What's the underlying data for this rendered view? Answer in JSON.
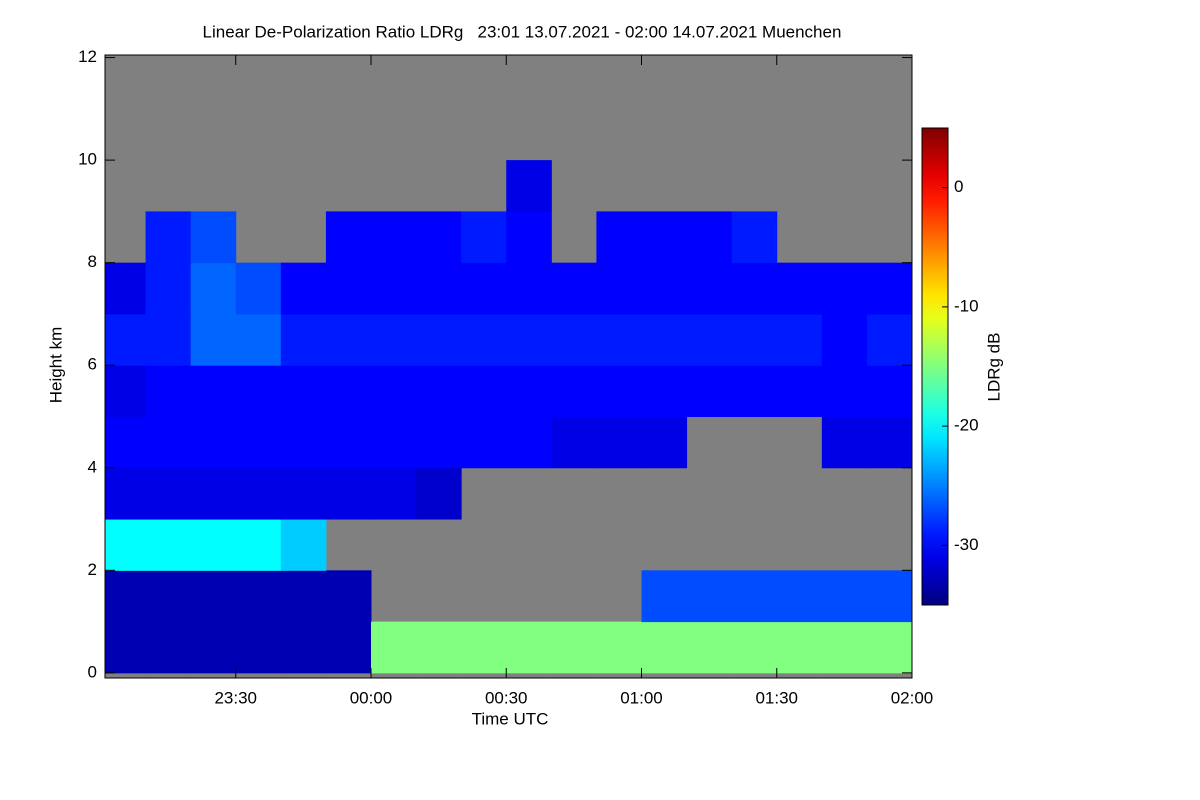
{
  "chart_data": {
    "type": "heatmap",
    "title": "Linear De-Polarization Ratio LDRg   23:01 13.07.2021 - 02:00 14.07.2021 Muenchen",
    "xlabel": "Time UTC",
    "ylabel": "Height km",
    "colorbar_label": "LDRg dB",
    "colormap": "jet",
    "nodata_color": "#808080",
    "xlim": [
      1,
      180
    ],
    "xticks": [
      {
        "value": 30,
        "label": "23:30"
      },
      {
        "value": 60,
        "label": "00:00"
      },
      {
        "value": 90,
        "label": "00:30"
      },
      {
        "value": 120,
        "label": "01:00"
      },
      {
        "value": 150,
        "label": "01:30"
      },
      {
        "value": 180,
        "label": "02:00"
      }
    ],
    "ylim": [
      -0.1,
      12.05
    ],
    "yticks": [
      0,
      2,
      4,
      6,
      8,
      10,
      12
    ],
    "clim": [
      -35,
      5
    ],
    "cticks": [
      0,
      -10,
      -20,
      -30
    ],
    "x_edges": [
      1,
      10,
      20,
      30,
      40,
      50,
      60,
      70,
      80,
      90,
      100,
      110,
      120,
      130,
      140,
      150,
      160,
      170,
      180
    ],
    "y_edges": [
      0,
      1,
      2,
      3,
      4,
      5,
      6,
      7,
      8,
      9,
      10,
      11,
      12
    ],
    "values": [
      [
        -33,
        -33,
        -33,
        -33,
        -33,
        -33,
        -15,
        -15,
        -15,
        -15,
        -15,
        -15,
        -15,
        -15,
        -15,
        -15,
        -15,
        -15
      ],
      [
        -33,
        -33,
        -33,
        -33,
        -33,
        -33,
        null,
        null,
        null,
        null,
        null,
        null,
        -27,
        -27,
        -27,
        -27,
        -27,
        -27
      ],
      [
        -20,
        -20,
        -20,
        -20,
        -22,
        null,
        null,
        null,
        null,
        null,
        null,
        null,
        null,
        null,
        null,
        null,
        null,
        null
      ],
      [
        -31,
        -31,
        -31,
        -31,
        -31,
        -31,
        -31,
        -32,
        null,
        null,
        null,
        null,
        null,
        null,
        null,
        null,
        null,
        null
      ],
      [
        -30,
        -30,
        -30,
        -30,
        -30,
        -30,
        -30,
        -30,
        -30,
        -30,
        -31,
        -31,
        -31,
        null,
        null,
        null,
        -31,
        -31
      ],
      [
        -31,
        -30,
        -30,
        -30,
        -30,
        -30,
        -30,
        -30,
        -30,
        -30,
        -30,
        -30,
        -30,
        -30,
        -30,
        -30,
        -30,
        -30
      ],
      [
        -29,
        -29,
        -26,
        -26,
        -29,
        -29,
        -29,
        -29,
        -29,
        -29,
        -29,
        -29,
        -29,
        -29,
        -29,
        -29,
        -30,
        -29
      ],
      [
        -31,
        -29,
        -26,
        -27,
        -30,
        -30,
        -30,
        -30,
        -30,
        -30,
        -30,
        -30,
        -30,
        -30,
        -30,
        -30,
        -30,
        -30
      ],
      [
        null,
        -29,
        -27,
        null,
        null,
        -30,
        -30,
        -30,
        -29,
        -30,
        null,
        -30,
        -30,
        -30,
        -29,
        null,
        null,
        null
      ],
      [
        null,
        null,
        null,
        null,
        null,
        null,
        null,
        null,
        null,
        -31,
        null,
        null,
        null,
        null,
        null,
        null,
        null,
        null
      ],
      [
        null,
        null,
        null,
        null,
        null,
        null,
        null,
        null,
        null,
        null,
        null,
        null,
        null,
        null,
        null,
        null,
        null,
        null
      ],
      [
        null,
        null,
        null,
        null,
        null,
        null,
        null,
        null,
        null,
        null,
        null,
        null,
        null,
        null,
        null,
        null,
        null,
        null
      ]
    ]
  }
}
